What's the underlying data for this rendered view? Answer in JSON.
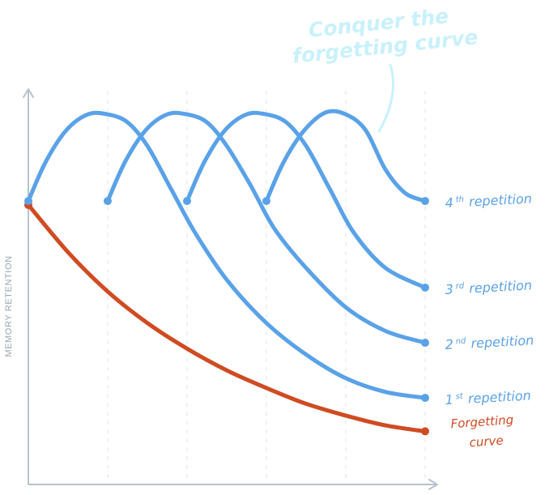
{
  "chart_data": {
    "type": "line",
    "title": "",
    "xlabel": "",
    "ylabel": "MEMORY RETENTION",
    "xlim": [
      0,
      5
    ],
    "ylim": [
      0,
      1
    ],
    "grid": true,
    "annotation": {
      "line1": "Conquer the",
      "line2": "forgetting curve"
    },
    "colors": {
      "axis": "#b7c2cc",
      "grid": "#e3e8ee",
      "repetition": "#5aa2e8",
      "forgetting": "#cf4b22",
      "annotation": "#c9f1fb"
    },
    "series": [
      {
        "name": "Forgetting curve",
        "label_main": "Forgetting",
        "label_sub": "curve",
        "color": "#cf4b22",
        "points": [
          [
            0,
            0.71
          ],
          [
            0.5,
            0.59
          ],
          [
            1,
            0.49
          ],
          [
            1.5,
            0.41
          ],
          [
            2,
            0.345
          ],
          [
            2.5,
            0.29
          ],
          [
            3,
            0.245
          ],
          [
            3.5,
            0.205
          ],
          [
            4,
            0.175
          ],
          [
            4.5,
            0.15
          ],
          [
            5,
            0.135
          ]
        ]
      },
      {
        "name": "1st repetition",
        "label_num": "1",
        "label_sup": "st",
        "label_word": "repetition",
        "color": "#5aa2e8",
        "points": [
          [
            0,
            0.72
          ],
          [
            0.22,
            0.82
          ],
          [
            0.48,
            0.9
          ],
          [
            0.75,
            0.94
          ],
          [
            1,
            0.94
          ],
          [
            1.25,
            0.92
          ],
          [
            1.5,
            0.86
          ],
          [
            1.8,
            0.75
          ],
          [
            2.1,
            0.64
          ],
          [
            2.5,
            0.52
          ],
          [
            3,
            0.41
          ],
          [
            3.5,
            0.33
          ],
          [
            4,
            0.27
          ],
          [
            4.5,
            0.235
          ],
          [
            5,
            0.22
          ]
        ]
      },
      {
        "name": "2nd repetition",
        "label_num": "2",
        "label_sup": "nd",
        "label_word": "repetition",
        "color": "#5aa2e8",
        "points": [
          [
            1,
            0.72
          ],
          [
            1.22,
            0.82
          ],
          [
            1.48,
            0.9
          ],
          [
            1.75,
            0.94
          ],
          [
            2,
            0.94
          ],
          [
            2.25,
            0.92
          ],
          [
            2.5,
            0.86
          ],
          [
            2.8,
            0.76
          ],
          [
            3.1,
            0.65
          ],
          [
            3.5,
            0.55
          ],
          [
            4,
            0.45
          ],
          [
            4.5,
            0.39
          ],
          [
            5,
            0.36
          ]
        ]
      },
      {
        "name": "3rd repetition",
        "label_num": "3",
        "label_sup": "rd",
        "label_word": "repetition",
        "color": "#5aa2e8",
        "points": [
          [
            2,
            0.72
          ],
          [
            2.22,
            0.82
          ],
          [
            2.48,
            0.9
          ],
          [
            2.75,
            0.94
          ],
          [
            3,
            0.94
          ],
          [
            3.25,
            0.92
          ],
          [
            3.5,
            0.86
          ],
          [
            3.8,
            0.75
          ],
          [
            4.1,
            0.64
          ],
          [
            4.5,
            0.55
          ],
          [
            5,
            0.5
          ]
        ]
      },
      {
        "name": "4th repetition",
        "label_num": "4",
        "label_sup": "th",
        "label_word": "repetition",
        "color": "#5aa2e8",
        "points": [
          [
            3,
            0.72
          ],
          [
            3.22,
            0.82
          ],
          [
            3.48,
            0.9
          ],
          [
            3.75,
            0.945
          ],
          [
            4,
            0.94
          ],
          [
            4.25,
            0.9
          ],
          [
            4.5,
            0.8
          ],
          [
            4.75,
            0.74
          ],
          [
            5,
            0.72
          ]
        ]
      }
    ]
  }
}
